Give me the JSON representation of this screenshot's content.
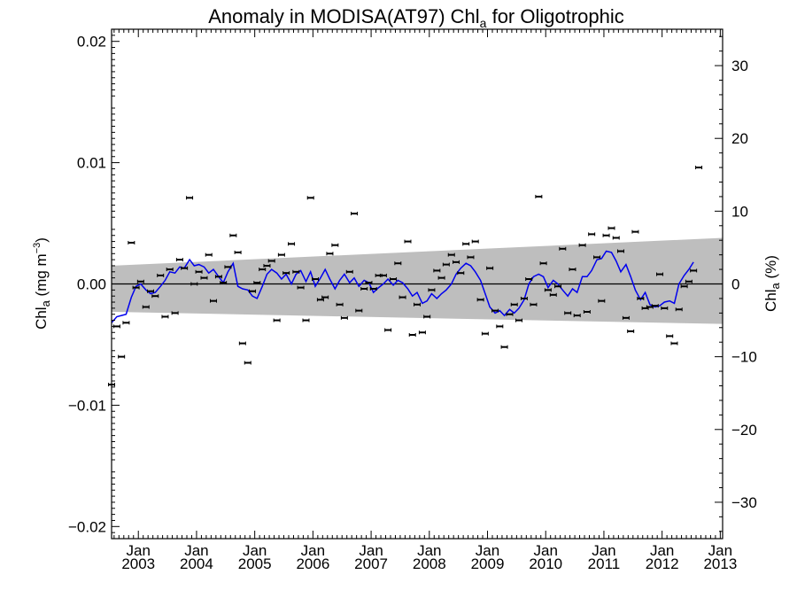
{
  "chart_data": {
    "type": "scatter",
    "title": "Anomaly in MODISA(AT97) Chl",
    "title_sub": "a",
    "title_suffix": " for Oligotrophic",
    "ylabel": {
      "prefix": "Chl",
      "sub": "a",
      "suffix": " (mg m",
      "sup": "−3",
      "end": ")"
    },
    "ylabel_right": {
      "prefix": "Chl",
      "sub": "a",
      "suffix": " (%)"
    },
    "xlim": [
      2002.54,
      2013.04
    ],
    "ylim": [
      -0.021,
      0.021
    ],
    "ylim_right": [
      -35,
      35
    ],
    "y_ticks": [
      0.02,
      0.01,
      0.0,
      -0.01,
      -0.02
    ],
    "y_tick_labels": [
      "0.02",
      "0.01",
      "0.00",
      "−0.01",
      "−0.02"
    ],
    "y2_ticks": [
      30,
      20,
      10,
      0,
      -10,
      -20,
      -30
    ],
    "y2_tick_labels": [
      "30",
      "20",
      "10",
      "0",
      "−10",
      "−20",
      "−30"
    ],
    "x_ticks": [
      {
        "x": 2003.0,
        "top": "Jan",
        "bottom": "2003"
      },
      {
        "x": 2004.0,
        "top": "Jan",
        "bottom": "2004"
      },
      {
        "x": 2005.0,
        "top": "Jan",
        "bottom": "2005"
      },
      {
        "x": 2006.0,
        "top": "Jan",
        "bottom": "2006"
      },
      {
        "x": 2007.0,
        "top": "Jan",
        "bottom": "2007"
      },
      {
        "x": 2008.0,
        "top": "Jan",
        "bottom": "2008"
      },
      {
        "x": 2009.0,
        "top": "Jan",
        "bottom": "2009"
      },
      {
        "x": 2010.0,
        "top": "Jan",
        "bottom": "2010"
      },
      {
        "x": 2011.0,
        "top": "Jan",
        "bottom": "2011"
      },
      {
        "x": 2012.0,
        "top": "Jan",
        "bottom": "2012"
      },
      {
        "x": 2013.0,
        "top": "Jan",
        "bottom": "2013"
      }
    ],
    "band": {
      "x": [
        2002.54,
        2013.04
      ],
      "upper": [
        0.0015,
        0.0038
      ],
      "lower": [
        -0.0023,
        -0.0033
      ],
      "color": "#bebebe"
    },
    "zero_line": 0.0,
    "colors": {
      "points": "#000000",
      "smooth": "#0000ee",
      "band": "#bebebe",
      "axes": "#000000"
    },
    "points": [
      [
        2002.54,
        -0.0083
      ],
      [
        2002.63,
        -0.0035
      ],
      [
        2002.71,
        -0.006
      ],
      [
        2002.79,
        -0.0032
      ],
      [
        2002.88,
        0.0034
      ],
      [
        2002.96,
        -0.0003
      ],
      [
        2003.04,
        0.0002
      ],
      [
        2003.13,
        -0.0019
      ],
      [
        2003.21,
        -0.0006
      ],
      [
        2003.29,
        -0.001
      ],
      [
        2003.38,
        0.0007
      ],
      [
        2003.46,
        -0.0027
      ],
      [
        2003.54,
        0.0012
      ],
      [
        2003.63,
        -0.0024
      ],
      [
        2003.71,
        0.002
      ],
      [
        2003.79,
        0.0013
      ],
      [
        2003.88,
        0.0071
      ],
      [
        2003.96,
        0.0
      ],
      [
        2004.04,
        0.001
      ],
      [
        2004.13,
        0.0005
      ],
      [
        2004.21,
        0.0024
      ],
      [
        2004.29,
        -0.0014
      ],
      [
        2004.38,
        0.0006
      ],
      [
        2004.46,
        0.0001
      ],
      [
        2004.54,
        0.0014
      ],
      [
        2004.63,
        0.004
      ],
      [
        2004.71,
        0.0026
      ],
      [
        2004.79,
        -0.0049
      ],
      [
        2004.88,
        -0.0065
      ],
      [
        2004.96,
        -0.0006
      ],
      [
        2005.04,
        0.0001
      ],
      [
        2005.13,
        0.0012
      ],
      [
        2005.21,
        0.0015
      ],
      [
        2005.29,
        0.0019
      ],
      [
        2005.38,
        -0.003
      ],
      [
        2005.46,
        0.0024
      ],
      [
        2005.54,
        0.0009
      ],
      [
        2005.63,
        0.0033
      ],
      [
        2005.71,
        0.001
      ],
      [
        2005.79,
        -0.0003
      ],
      [
        2005.88,
        -0.003
      ],
      [
        2005.96,
        0.0071
      ],
      [
        2006.04,
        0.0004
      ],
      [
        2006.13,
        -0.0013
      ],
      [
        2006.21,
        -0.0011
      ],
      [
        2006.29,
        0.0025
      ],
      [
        2006.38,
        0.0032
      ],
      [
        2006.46,
        -0.0017
      ],
      [
        2006.54,
        -0.0028
      ],
      [
        2006.63,
        0.001
      ],
      [
        2006.71,
        0.0058
      ],
      [
        2006.79,
        -0.0022
      ],
      [
        2006.88,
        -0.0004
      ],
      [
        2006.96,
        0.0001
      ],
      [
        2007.04,
        -0.0004
      ],
      [
        2007.13,
        0.0007
      ],
      [
        2007.21,
        0.0007
      ],
      [
        2007.29,
        -0.0038
      ],
      [
        2007.38,
        0.0004
      ],
      [
        2007.46,
        0.0017
      ],
      [
        2007.54,
        -0.0011
      ],
      [
        2007.63,
        0.0035
      ],
      [
        2007.71,
        -0.0042
      ],
      [
        2007.79,
        -0.0017
      ],
      [
        2007.88,
        -0.004
      ],
      [
        2007.96,
        -0.0027
      ],
      [
        2008.04,
        -0.0005
      ],
      [
        2008.13,
        0.0011
      ],
      [
        2008.21,
        0.0005
      ],
      [
        2008.29,
        0.0016
      ],
      [
        2008.38,
        0.0024
      ],
      [
        2008.46,
        0.0018
      ],
      [
        2008.54,
        0.0009
      ],
      [
        2008.63,
        0.0033
      ],
      [
        2008.71,
        0.0022
      ],
      [
        2008.79,
        0.0035
      ],
      [
        2008.88,
        -0.0013
      ],
      [
        2008.96,
        -0.0041
      ],
      [
        2009.04,
        0.0013
      ],
      [
        2009.13,
        -0.0022
      ],
      [
        2009.21,
        -0.0035
      ],
      [
        2009.29,
        -0.0052
      ],
      [
        2009.38,
        -0.0025
      ],
      [
        2009.46,
        -0.0017
      ],
      [
        2009.54,
        -0.003
      ],
      [
        2009.63,
        -0.0012
      ],
      [
        2009.71,
        0.0004
      ],
      [
        2009.79,
        -0.0017
      ],
      [
        2009.88,
        0.0072
      ],
      [
        2009.96,
        0.0017
      ],
      [
        2010.04,
        -0.0005
      ],
      [
        2010.13,
        -0.0009
      ],
      [
        2010.21,
        -0.0002
      ],
      [
        2010.29,
        0.0029
      ],
      [
        2010.38,
        -0.0024
      ],
      [
        2010.46,
        0.0012
      ],
      [
        2010.54,
        -0.0026
      ],
      [
        2010.63,
        0.0032
      ],
      [
        2010.71,
        -0.0023
      ],
      [
        2010.79,
        0.0041
      ],
      [
        2010.88,
        0.0022
      ],
      [
        2010.96,
        -0.0014
      ],
      [
        2011.04,
        0.004
      ],
      [
        2011.13,
        0.0046
      ],
      [
        2011.21,
        0.0038
      ],
      [
        2011.29,
        0.0027
      ],
      [
        2011.38,
        -0.0028
      ],
      [
        2011.46,
        -0.0039
      ],
      [
        2011.54,
        0.0043
      ],
      [
        2011.63,
        -0.0012
      ],
      [
        2011.71,
        -0.002
      ],
      [
        2011.79,
        -0.0019
      ],
      [
        2011.88,
        -0.0018
      ],
      [
        2011.96,
        0.0008
      ],
      [
        2012.04,
        -0.002
      ],
      [
        2012.13,
        -0.0043
      ],
      [
        2012.21,
        -0.0049
      ],
      [
        2012.29,
        -0.0021
      ],
      [
        2012.38,
        -0.0002
      ],
      [
        2012.46,
        0.0002
      ],
      [
        2012.54,
        0.0011
      ],
      [
        2012.63,
        0.0096
      ]
    ],
    "smooth": [
      [
        2002.54,
        -0.0032
      ],
      [
        2002.63,
        -0.0027
      ],
      [
        2002.71,
        -0.0026
      ],
      [
        2002.79,
        -0.0025
      ],
      [
        2002.88,
        -0.0011
      ],
      [
        2002.96,
        -0.0002
      ],
      [
        2003.04,
        0.0
      ],
      [
        2003.13,
        -0.0005
      ],
      [
        2003.21,
        -0.0008
      ],
      [
        2003.29,
        -0.0007
      ],
      [
        2003.38,
        -0.0002
      ],
      [
        2003.46,
        0.0003
      ],
      [
        2003.54,
        0.001
      ],
      [
        2003.63,
        0.0009
      ],
      [
        2003.71,
        0.0014
      ],
      [
        2003.79,
        0.0013
      ],
      [
        2003.88,
        0.002
      ],
      [
        2003.96,
        0.0015
      ],
      [
        2004.04,
        0.0016
      ],
      [
        2004.13,
        0.0014
      ],
      [
        2004.21,
        0.0009
      ],
      [
        2004.29,
        0.0012
      ],
      [
        2004.38,
        0.0006
      ],
      [
        2004.46,
        0.0001
      ],
      [
        2004.54,
        0.001
      ],
      [
        2004.63,
        0.0017
      ],
      [
        2004.71,
        -0.0002
      ],
      [
        2004.79,
        -0.0004
      ],
      [
        2004.88,
        -0.0005
      ],
      [
        2004.96,
        -0.001
      ],
      [
        2005.04,
        -0.0012
      ],
      [
        2005.13,
        -0.0002
      ],
      [
        2005.21,
        0.0008
      ],
      [
        2005.29,
        0.0012
      ],
      [
        2005.38,
        0.0009
      ],
      [
        2005.46,
        0.0004
      ],
      [
        2005.54,
        0.0008
      ],
      [
        2005.63,
        0.0
      ],
      [
        2005.71,
        0.0008
      ],
      [
        2005.79,
        0.0011
      ],
      [
        2005.88,
        0.0002
      ],
      [
        2005.96,
        0.001
      ],
      [
        2006.04,
        -0.0002
      ],
      [
        2006.13,
        0.0005
      ],
      [
        2006.21,
        0.0012
      ],
      [
        2006.29,
        0.0004
      ],
      [
        2006.38,
        -0.0004
      ],
      [
        2006.46,
        0.0003
      ],
      [
        2006.54,
        0.0008
      ],
      [
        2006.63,
        0.0001
      ],
      [
        2006.71,
        0.0005
      ],
      [
        2006.79,
        -0.0002
      ],
      [
        2006.88,
        0.0003
      ],
      [
        2006.96,
        0.0001
      ],
      [
        2007.04,
        -0.0007
      ],
      [
        2007.13,
        -0.0003
      ],
      [
        2007.21,
        0.0
      ],
      [
        2007.29,
        0.0004
      ],
      [
        2007.38,
        -0.0001
      ],
      [
        2007.46,
        0.0003
      ],
      [
        2007.54,
        0.0001
      ],
      [
        2007.63,
        -0.0004
      ],
      [
        2007.71,
        -0.001
      ],
      [
        2007.79,
        -0.0007
      ],
      [
        2007.88,
        -0.0016
      ],
      [
        2007.96,
        -0.0014
      ],
      [
        2008.04,
        -0.0008
      ],
      [
        2008.13,
        -0.0012
      ],
      [
        2008.21,
        -0.0008
      ],
      [
        2008.29,
        -0.0005
      ],
      [
        2008.38,
        0.0
      ],
      [
        2008.46,
        0.0008
      ],
      [
        2008.54,
        0.0013
      ],
      [
        2008.63,
        0.0017
      ],
      [
        2008.71,
        0.0015
      ],
      [
        2008.79,
        0.001
      ],
      [
        2008.88,
        0.0003
      ],
      [
        2008.96,
        -0.0008
      ],
      [
        2009.04,
        -0.0019
      ],
      [
        2009.13,
        -0.0024
      ],
      [
        2009.21,
        -0.0022
      ],
      [
        2009.29,
        -0.0026
      ],
      [
        2009.38,
        -0.0021
      ],
      [
        2009.46,
        -0.0024
      ],
      [
        2009.54,
        -0.002
      ],
      [
        2009.63,
        -0.0013
      ],
      [
        2009.71,
        0.0
      ],
      [
        2009.79,
        0.0006
      ],
      [
        2009.88,
        0.0008
      ],
      [
        2009.96,
        0.0006
      ],
      [
        2010.04,
        -0.0003
      ],
      [
        2010.13,
        0.0003
      ],
      [
        2010.21,
        0.0
      ],
      [
        2010.29,
        -0.0005
      ],
      [
        2010.38,
        -0.001
      ],
      [
        2010.46,
        -0.0004
      ],
      [
        2010.54,
        -0.0007
      ],
      [
        2010.63,
        0.0006
      ],
      [
        2010.71,
        0.0006
      ],
      [
        2010.79,
        0.0011
      ],
      [
        2010.88,
        0.002
      ],
      [
        2010.96,
        0.0021
      ],
      [
        2011.04,
        0.0027
      ],
      [
        2011.13,
        0.0026
      ],
      [
        2011.21,
        0.0019
      ],
      [
        2011.29,
        0.001
      ],
      [
        2011.38,
        0.0016
      ],
      [
        2011.46,
        0.0006
      ],
      [
        2011.54,
        -0.0005
      ],
      [
        2011.63,
        -0.0013
      ],
      [
        2011.71,
        -0.0007
      ],
      [
        2011.79,
        -0.0017
      ],
      [
        2011.88,
        -0.0019
      ],
      [
        2011.96,
        -0.0018
      ],
      [
        2012.04,
        -0.0015
      ],
      [
        2012.13,
        -0.0014
      ],
      [
        2012.21,
        -0.0016
      ],
      [
        2012.29,
        0.0
      ],
      [
        2012.38,
        0.0007
      ],
      [
        2012.46,
        0.0012
      ],
      [
        2012.54,
        0.0018
      ]
    ]
  }
}
